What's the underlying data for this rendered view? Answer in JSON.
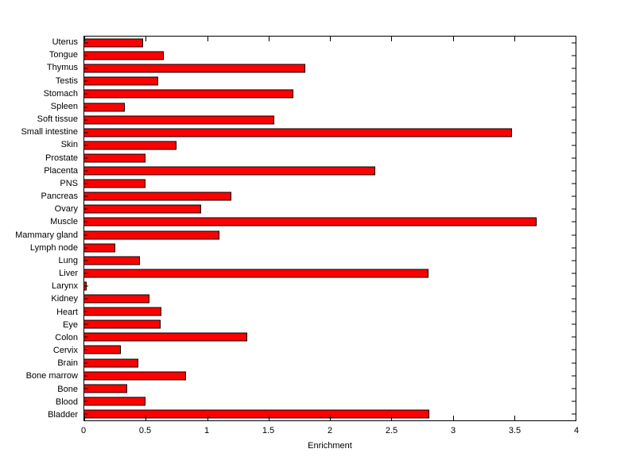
{
  "figure": {
    "background_color": "#ffffff",
    "axes_border_color": "#000000"
  },
  "chart_data": {
    "type": "bar",
    "orientation": "horizontal",
    "title": "",
    "xlabel": "Enrichment",
    "ylabel": "",
    "xlim": [
      0,
      4
    ],
    "xticks": [
      0,
      0.5,
      1,
      1.5,
      2,
      2.5,
      3,
      3.5,
      4
    ],
    "xtick_labels": [
      "0",
      "0.5",
      "1",
      "1.5",
      "2",
      "2.5",
      "3",
      "3.5",
      "4"
    ],
    "grid": false,
    "legend": false,
    "bar_color": "#ff0000",
    "bar_edge_color": "#000000",
    "categories": [
      "Uterus",
      "Tongue",
      "Thymus",
      "Testis",
      "Stomach",
      "Spleen",
      "Soft tissue",
      "Small intestine",
      "Skin",
      "Prostate",
      "Placenta",
      "PNS",
      "Pancreas",
      "Ovary",
      "Muscle",
      "Mammary gland",
      "Lymph node",
      "Lung",
      "Liver",
      "Larynx",
      "Kidney",
      "Heart",
      "Eye",
      "Colon",
      "Cervix",
      "Brain",
      "Bone marrow",
      "Bone",
      "Blood",
      "Bladder"
    ],
    "values": [
      0.48,
      0.65,
      1.8,
      0.6,
      1.7,
      0.33,
      1.55,
      3.48,
      0.75,
      0.5,
      2.37,
      0.5,
      1.2,
      0.95,
      3.68,
      1.1,
      0.25,
      0.45,
      2.8,
      0.02,
      0.53,
      0.63,
      0.62,
      1.33,
      0.3,
      0.44,
      0.83,
      0.35,
      0.5,
      2.81
    ]
  }
}
